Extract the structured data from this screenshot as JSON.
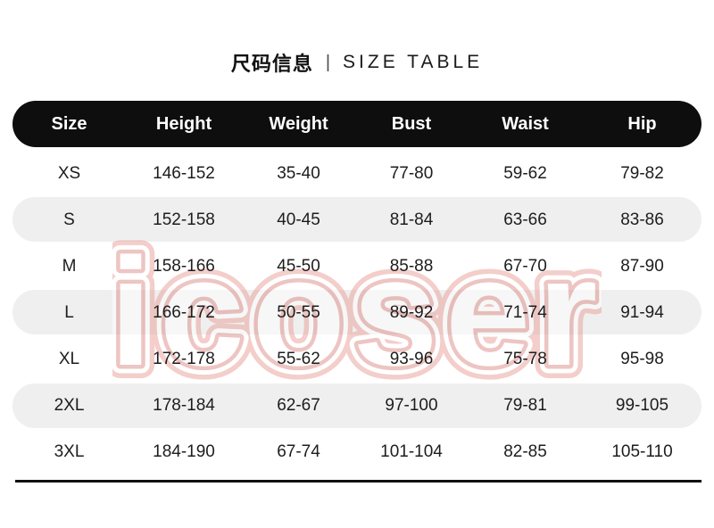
{
  "title": {
    "cn": "尺码信息",
    "divider": "|",
    "en": "SIZE TABLE"
  },
  "watermark": {
    "text": "icoser"
  },
  "table": {
    "headers": [
      "Size",
      "Height",
      "Weight",
      "Bust",
      "Waist",
      "Hip"
    ],
    "rows": [
      {
        "cells": [
          "XS",
          "146-152",
          "35-40",
          "77-80",
          "59-62",
          "79-82"
        ]
      },
      {
        "cells": [
          "S",
          "152-158",
          "40-45",
          "81-84",
          "63-66",
          "83-86"
        ]
      },
      {
        "cells": [
          "M",
          "158-166",
          "45-50",
          "85-88",
          "67-70",
          "87-90"
        ]
      },
      {
        "cells": [
          "L",
          "166-172",
          "50-55",
          "89-92",
          "71-74",
          "91-94"
        ]
      },
      {
        "cells": [
          "XL",
          "172-178",
          "55-62",
          "93-96",
          "75-78",
          "95-98"
        ]
      },
      {
        "cells": [
          "2XL",
          "178-184",
          "62-67",
          "97-100",
          "79-81",
          "99-105"
        ]
      },
      {
        "cells": [
          "3XL",
          "184-190",
          "67-74",
          "101-104",
          "82-85",
          "105-110"
        ]
      }
    ]
  },
  "colors": {
    "header_bg": "#0e0e0e",
    "header_text": "#ffffff",
    "row_shade": "#efefef",
    "body_text": "#1d1d1d",
    "watermark_pink": "#dc8d86",
    "bottom_rule": "#101010"
  }
}
